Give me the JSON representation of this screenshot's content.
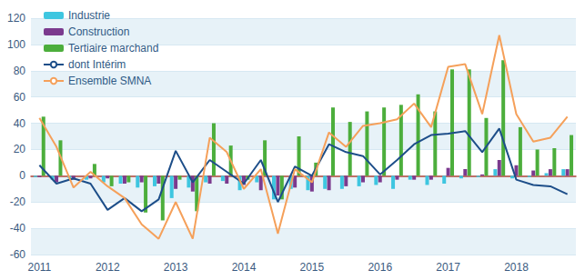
{
  "chart_data": {
    "type": "bar",
    "categories": [
      "2011",
      null,
      null,
      null,
      "2012",
      null,
      null,
      null,
      "2013",
      null,
      null,
      null,
      "2014",
      null,
      null,
      null,
      "2015",
      null,
      null,
      null,
      "2016",
      null,
      null,
      null,
      "2017",
      null,
      null,
      null,
      "2018",
      null,
      null,
      null
    ],
    "series": [
      {
        "name": "Industrie",
        "type": "bar",
        "color": "#3ec6e0",
        "values": [
          -1,
          -3,
          -2,
          -3,
          -5,
          -6,
          -9,
          -8,
          -17,
          -9,
          -5,
          -4,
          -11,
          -5,
          -18,
          -10,
          -11,
          -10,
          -10,
          -8,
          -7,
          -10,
          -3,
          -7,
          -6,
          -2,
          -1,
          5,
          -2,
          -1,
          2,
          5
        ]
      },
      {
        "name": "Construction",
        "type": "bar",
        "color": "#7b3a8e",
        "values": [
          -1,
          -5,
          -3,
          -2,
          -2,
          -6,
          -5,
          -6,
          -10,
          -12,
          -6,
          -6,
          -7,
          -11,
          -15,
          -9,
          -12,
          -11,
          -8,
          -5,
          -5,
          -3,
          -3,
          -3,
          6,
          5,
          1,
          12,
          8,
          4,
          5,
          5
        ]
      },
      {
        "name": "Tertiaire marchand",
        "type": "bar",
        "color": "#4cae3c",
        "values": [
          45,
          27,
          0,
          9,
          -8,
          -5,
          -28,
          -34,
          -3,
          -27,
          40,
          23,
          -3,
          27,
          -18,
          30,
          10,
          52,
          41,
          49,
          52,
          54,
          62,
          49,
          81,
          81,
          44,
          88,
          37,
          20,
          21,
          31
        ]
      },
      {
        "name": "dont Intérim",
        "type": "line",
        "color": "#1d4e89",
        "values": [
          8,
          -6,
          -2,
          -6,
          -26,
          -17,
          -27,
          -18,
          19,
          -5,
          12,
          3,
          -6,
          12,
          -20,
          7,
          0,
          24,
          18,
          15,
          1,
          12,
          24,
          31,
          32,
          34,
          18,
          36,
          -3,
          -7,
          -8,
          -14
        ]
      },
      {
        "name": "Ensemble SMNA",
        "type": "line",
        "color": "#f5a05a",
        "values": [
          44,
          22,
          -9,
          3,
          -8,
          -17,
          -37,
          -48,
          -20,
          -48,
          29,
          18,
          -10,
          5,
          -44,
          5,
          -5,
          33,
          22,
          38,
          40,
          43,
          55,
          37,
          83,
          85,
          47,
          107,
          47,
          26,
          29,
          45
        ]
      }
    ],
    "ylim": [
      -60,
      120
    ],
    "yticks": [
      -60,
      -40,
      -20,
      0,
      20,
      40,
      60,
      80,
      100,
      120
    ],
    "grid": true,
    "legend": "top-left"
  }
}
